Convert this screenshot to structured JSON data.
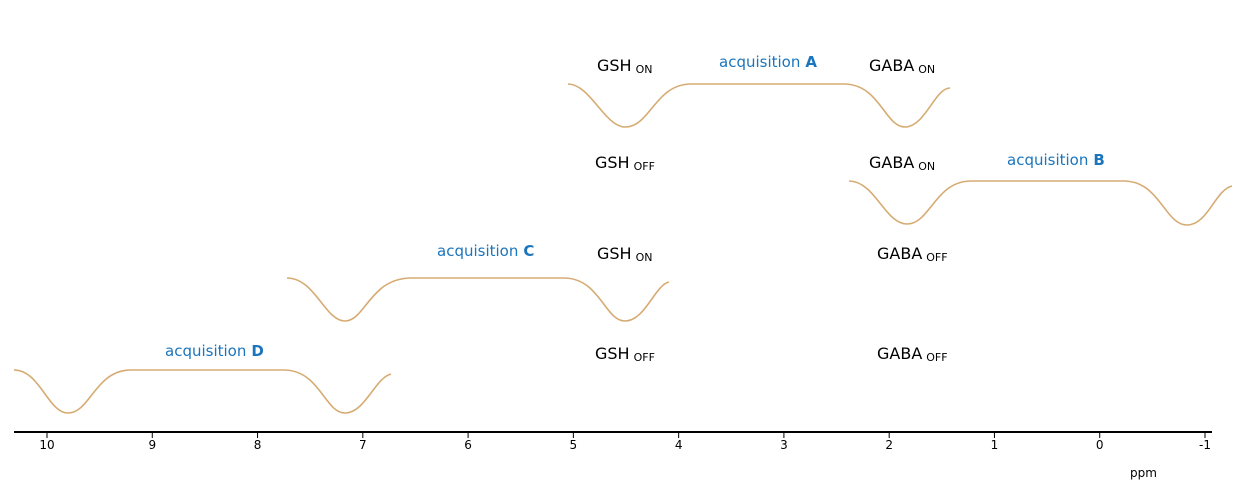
{
  "chart_data": {
    "type": "diagram",
    "axis": {
      "unit": "ppm",
      "range": [
        10.3,
        -1.0
      ],
      "ticks": [
        10,
        9,
        8,
        7,
        6,
        5,
        4,
        3,
        2,
        1,
        0,
        -1
      ]
    },
    "acquisitions": [
      {
        "prefix": "acquisition",
        "letter": "A",
        "pulse_centers_ppm": [
          4.5,
          1.8
        ],
        "span_ppm": [
          5.05,
          1.4
        ],
        "labels": [
          {
            "main": "GSH",
            "sub": "ON"
          },
          {
            "main": "GABA",
            "sub": "ON"
          }
        ]
      },
      {
        "prefix": "acquisition",
        "letter": "B",
        "pulse_centers_ppm": [
          1.8,
          -0.8
        ],
        "span_ppm": [
          2.35,
          -1.25
        ],
        "labels": [
          {
            "main": "GSH",
            "sub": "OFF"
          },
          {
            "main": "GABA",
            "sub": "ON"
          }
        ]
      },
      {
        "prefix": "acquisition",
        "letter": "C",
        "pulse_centers_ppm": [
          7.2,
          4.5
        ],
        "span_ppm": [
          7.75,
          3.9
        ],
        "labels": [
          {
            "main": "GSH",
            "sub": "ON"
          },
          {
            "main": "GABA",
            "sub": "OFF"
          }
        ]
      },
      {
        "prefix": "acquisition",
        "letter": "D",
        "pulse_centers_ppm": [
          9.8,
          7.2
        ],
        "span_ppm": [
          10.3,
          6.7
        ],
        "labels": [
          {
            "main": "GSH",
            "sub": "OFF"
          },
          {
            "main": "GABA",
            "sub": "OFF"
          }
        ]
      }
    ]
  },
  "colors": {
    "pulse": "#d6ab73",
    "acquisition_label": "#1b75bc",
    "text": "#000000"
  }
}
